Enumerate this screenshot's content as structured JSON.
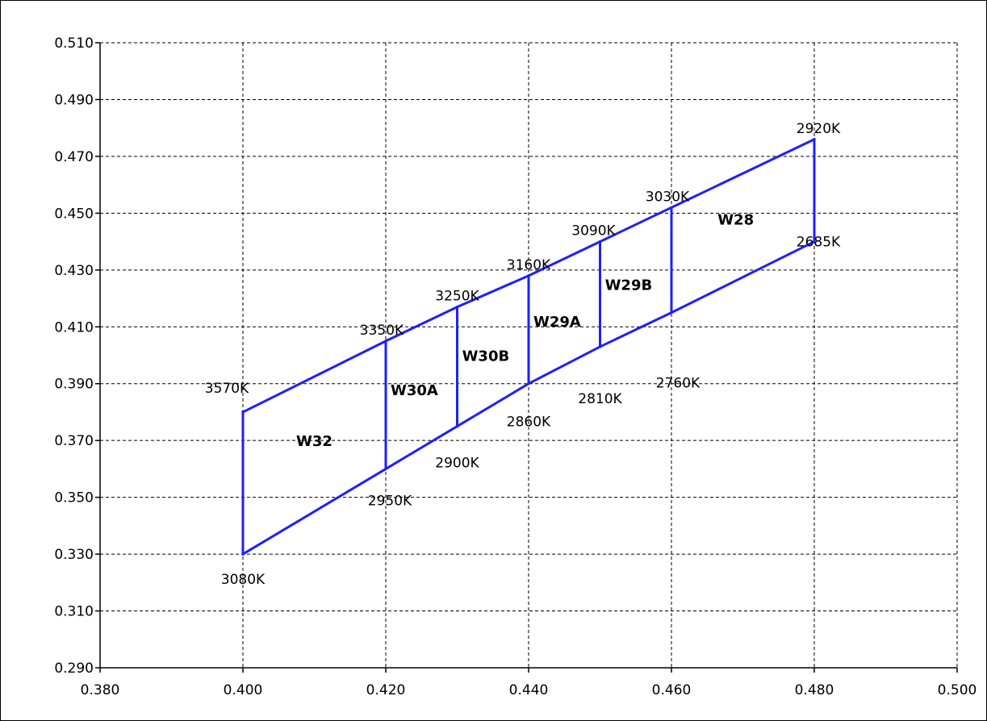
{
  "chart_data": {
    "type": "line",
    "title": "",
    "xlabel": "",
    "ylabel": "",
    "xlim": [
      0.38,
      0.5
    ],
    "ylim": [
      0.29,
      0.51
    ],
    "x_ticks": [
      "0.380",
      "0.400",
      "0.420",
      "0.440",
      "0.460",
      "0.480",
      "0.500"
    ],
    "y_ticks": [
      "0.510",
      "0.490",
      "0.470",
      "0.450",
      "0.430",
      "0.410",
      "0.390",
      "0.370",
      "0.350",
      "0.330",
      "0.310",
      "0.290"
    ],
    "grid": true,
    "line_color": "#1f1fff",
    "boundaries": [
      {
        "x": 0.4,
        "y_bottom": 0.33,
        "y_top": 0.38,
        "top_label": "3570K",
        "bottom_label": "3080K"
      },
      {
        "x": 0.42,
        "y_bottom": 0.36,
        "y_top": 0.405,
        "top_label": "3350K",
        "bottom_label": "2950K"
      },
      {
        "x": 0.43,
        "y_bottom": 0.375,
        "y_top": 0.417,
        "top_label": "3250K",
        "bottom_label": "2900K"
      },
      {
        "x": 0.44,
        "y_bottom": 0.39,
        "y_top": 0.428,
        "top_label": "3160K",
        "bottom_label": "2860K"
      },
      {
        "x": 0.45,
        "y_bottom": 0.403,
        "y_top": 0.44,
        "top_label": "3090K",
        "bottom_label": "2810K"
      },
      {
        "x": 0.46,
        "y_bottom": 0.415,
        "y_top": 0.452,
        "top_label": "3030K",
        "bottom_label": "2760K"
      },
      {
        "x": 0.48,
        "y_bottom": 0.44,
        "y_top": 0.476,
        "top_label": "2920K",
        "bottom_label": "2685K"
      }
    ],
    "regions": [
      {
        "name": "W32",
        "x": 0.41,
        "y": 0.37
      },
      {
        "name": "W30A",
        "x": 0.424,
        "y": 0.388
      },
      {
        "name": "W30B",
        "x": 0.434,
        "y": 0.4
      },
      {
        "name": "W29A",
        "x": 0.444,
        "y": 0.412
      },
      {
        "name": "W29B",
        "x": 0.454,
        "y": 0.425
      },
      {
        "name": "W28",
        "x": 0.469,
        "y": 0.448
      }
    ]
  }
}
